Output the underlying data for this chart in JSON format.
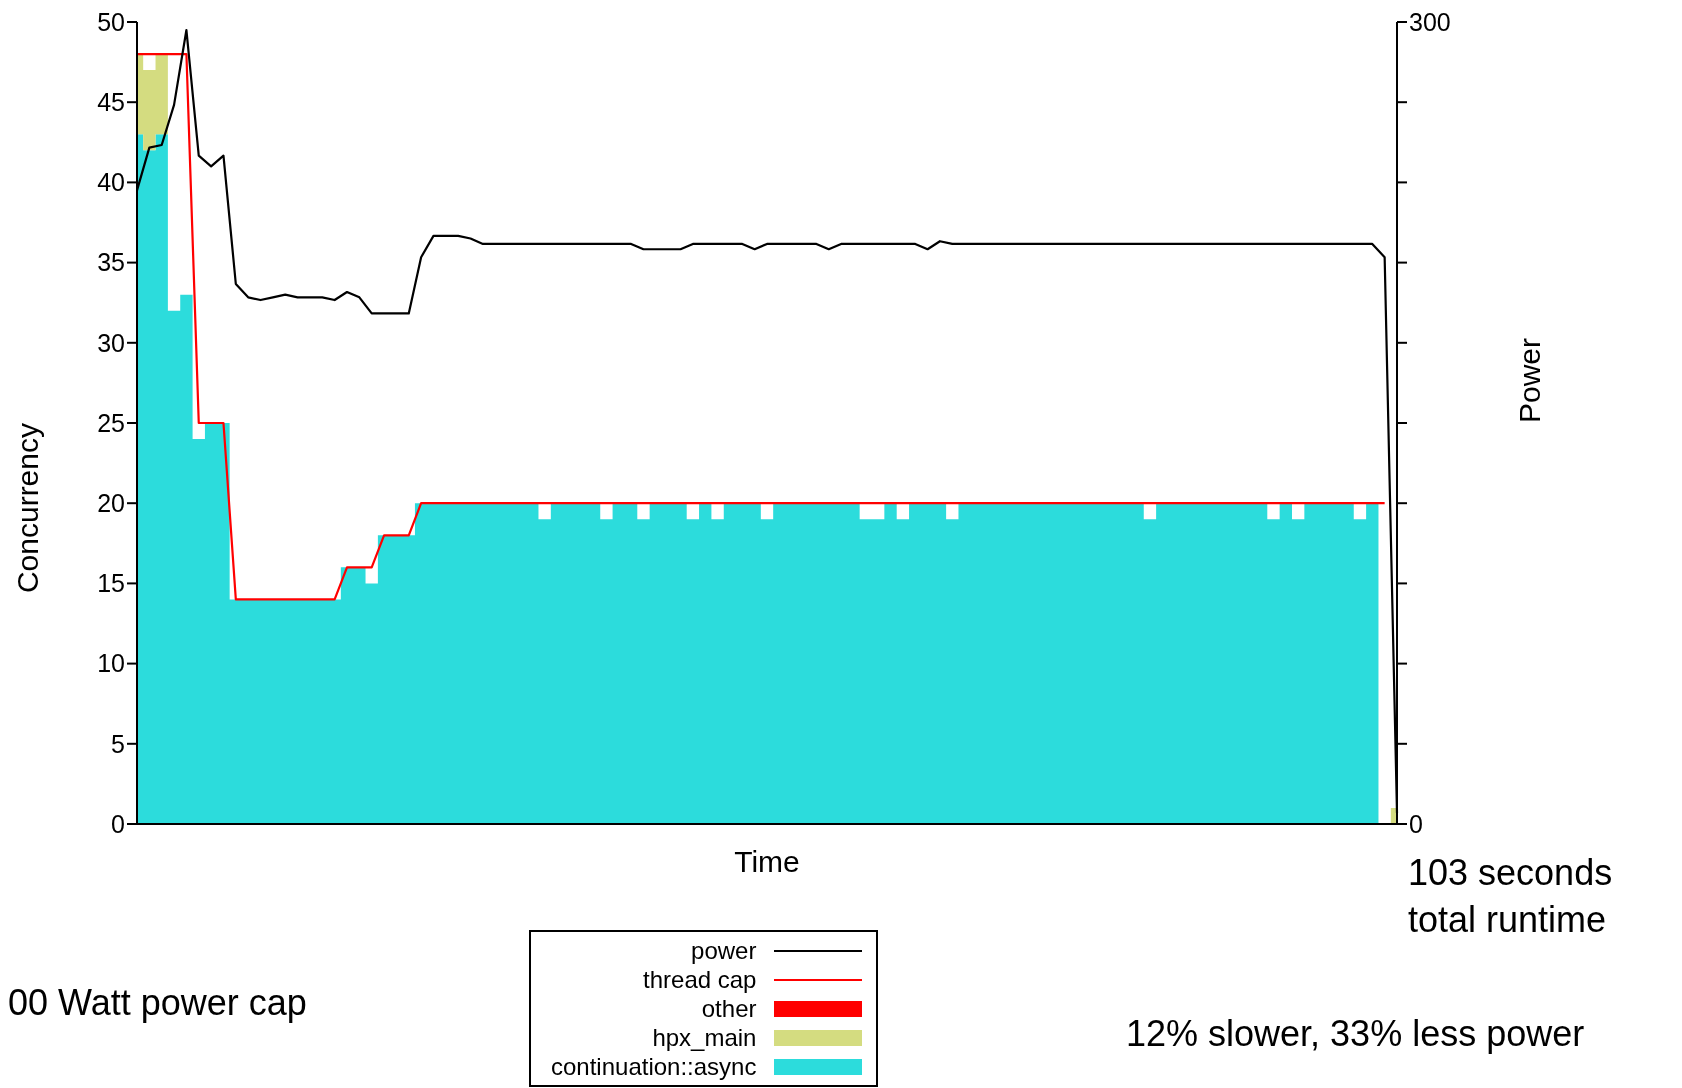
{
  "chart_data": {
    "type": "area",
    "xlabel": "Time",
    "ylabel": "Concurrency",
    "y2label": "Power",
    "categories": [
      null,
      null,
      null,
      null,
      null,
      null,
      null,
      null,
      null,
      null,
      null,
      null,
      null,
      null,
      null,
      null,
      null,
      null,
      null,
      null,
      null,
      null,
      null,
      null,
      null,
      null,
      null,
      null,
      null,
      null,
      null,
      null,
      null,
      null,
      null,
      null,
      null,
      null,
      null,
      null,
      null,
      null,
      null,
      null,
      null,
      null,
      null,
      null,
      null,
      null,
      null,
      null,
      null,
      null,
      null,
      null,
      null,
      null,
      null,
      null,
      null,
      null,
      null,
      null,
      null,
      null,
      null,
      null,
      null,
      null,
      null,
      null,
      null,
      null,
      null,
      null,
      null,
      null,
      null,
      null,
      null,
      null,
      null,
      null,
      null,
      null,
      null,
      null,
      null,
      null,
      null,
      null,
      null,
      null,
      null,
      null,
      null,
      null,
      null,
      null,
      null,
      null,
      null
    ],
    "stacked": true,
    "series": [
      {
        "name": "continuation::async",
        "color": "#2cdcdc",
        "values": [
          43,
          42,
          43,
          32,
          33,
          24,
          25,
          25,
          14,
          14,
          14,
          14,
          14,
          14,
          14,
          14,
          14,
          16,
          16,
          15,
          18,
          18,
          18,
          20,
          20,
          20,
          20,
          20,
          20,
          20,
          20,
          20,
          20,
          19,
          20,
          20,
          20,
          20,
          19,
          20,
          20,
          19,
          20,
          20,
          20,
          19,
          20,
          19,
          20,
          20,
          20,
          19,
          20,
          20,
          20,
          20,
          20,
          20,
          20,
          19,
          19,
          20,
          19,
          20,
          20,
          20,
          19,
          20,
          20,
          20,
          20,
          20,
          20,
          20,
          20,
          20,
          20,
          20,
          20,
          20,
          20,
          20,
          19,
          20,
          20,
          20,
          20,
          20,
          20,
          20,
          20,
          20,
          19,
          20,
          19,
          20,
          20,
          20,
          20,
          19,
          20,
          0,
          0
        ]
      },
      {
        "name": "hpx_main",
        "color": "#d4dc80",
        "values": [
          5,
          5,
          5,
          0,
          0,
          0,
          0,
          0,
          0,
          0,
          0,
          0,
          0,
          0,
          0,
          0,
          0,
          0,
          0,
          0,
          0,
          0,
          0,
          0,
          0,
          0,
          0,
          0,
          0,
          0,
          0,
          0,
          0,
          0,
          0,
          0,
          0,
          0,
          0,
          0,
          0,
          0,
          0,
          0,
          0,
          0,
          0,
          0,
          0,
          0,
          0,
          0,
          0,
          0,
          0,
          0,
          0,
          0,
          0,
          0,
          0,
          0,
          0,
          0,
          0,
          0,
          0,
          0,
          0,
          0,
          0,
          0,
          0,
          0,
          0,
          0,
          0,
          0,
          0,
          0,
          0,
          0,
          0,
          0,
          0,
          0,
          0,
          0,
          0,
          0,
          0,
          0,
          0,
          0,
          0,
          0,
          0,
          0,
          0,
          0,
          0,
          0,
          1
        ]
      },
      {
        "name": "other",
        "color": "#ff0000",
        "values": [
          null,
          null,
          null,
          null,
          null,
          null,
          null,
          null,
          null,
          null,
          null,
          null,
          null,
          null,
          null,
          null,
          null,
          null,
          null,
          null,
          null,
          null,
          null,
          null,
          null,
          null,
          null,
          null,
          null,
          null,
          null,
          null,
          null,
          null,
          null,
          null,
          null,
          null,
          null,
          null,
          null,
          null,
          null,
          null,
          null,
          null,
          null,
          null,
          null,
          null,
          null,
          null,
          null,
          null,
          null,
          null,
          null,
          null,
          null,
          null,
          null,
          null,
          null,
          null,
          null,
          null,
          null,
          null,
          null,
          null,
          null,
          null,
          null,
          null,
          null,
          null,
          null,
          null,
          null,
          null,
          null,
          null,
          null,
          null,
          null,
          null,
          null,
          null,
          null,
          null,
          null,
          null,
          null,
          null,
          null,
          null,
          null,
          null,
          null,
          null,
          null,
          null,
          null
        ]
      },
      {
        "name": "thread cap",
        "type": "line",
        "color": "#ff0000",
        "values": [
          48,
          48,
          48,
          48,
          48,
          25,
          25,
          25,
          14,
          14,
          14,
          14,
          14,
          14,
          14,
          14,
          14,
          16,
          16,
          16,
          18,
          18,
          18,
          20,
          20,
          20,
          20,
          20,
          20,
          20,
          20,
          20,
          20,
          20,
          20,
          20,
          20,
          20,
          20,
          20,
          20,
          20,
          20,
          20,
          20,
          20,
          20,
          20,
          20,
          20,
          20,
          20,
          20,
          20,
          20,
          20,
          20,
          20,
          20,
          20,
          20,
          20,
          20,
          20,
          20,
          20,
          20,
          20,
          20,
          20,
          20,
          20,
          20,
          20,
          20,
          20,
          20,
          20,
          20,
          20,
          20,
          20,
          20,
          20,
          20,
          20,
          20,
          20,
          20,
          20,
          20,
          20,
          20,
          20,
          20,
          20,
          20,
          20,
          20,
          20,
          20,
          20,
          null
        ]
      },
      {
        "name": "power",
        "type": "line",
        "axis": "y2",
        "color": "#000000",
        "values": [
          237,
          253,
          254,
          269,
          297,
          250,
          246,
          250,
          202,
          197,
          196,
          197,
          198,
          197,
          197,
          197,
          196,
          199,
          197,
          191,
          191,
          191,
          191,
          212,
          220,
          220,
          220,
          219,
          217,
          217,
          217,
          217,
          217,
          217,
          217,
          217,
          217,
          217,
          217,
          217,
          217,
          215,
          215,
          215,
          215,
          217,
          217,
          217,
          217,
          217,
          215,
          217,
          217,
          217,
          217,
          217,
          215,
          217,
          217,
          217,
          217,
          217,
          217,
          217,
          215,
          218,
          217,
          217,
          217,
          217,
          217,
          217,
          217,
          217,
          217,
          217,
          217,
          217,
          217,
          217,
          217,
          217,
          217,
          217,
          217,
          217,
          217,
          217,
          217,
          217,
          217,
          217,
          217,
          217,
          217,
          217,
          217,
          217,
          217,
          217,
          217,
          212,
          4
        ]
      }
    ],
    "ylim": [
      0,
      50
    ],
    "yticks": [
      0,
      5,
      10,
      15,
      20,
      25,
      30,
      35,
      40,
      45,
      50
    ],
    "y2lim": [
      0,
      300
    ],
    "y2ticks": [
      0,
      {
        "value": 30,
        "label": null
      },
      {
        "value": 60,
        "label": null
      },
      {
        "value": 90,
        "label": null
      },
      {
        "value": 120,
        "label": null
      },
      {
        "value": 150,
        "label": null
      },
      {
        "value": 180,
        "label": null
      },
      {
        "value": 210,
        "label": null
      },
      {
        "value": 240,
        "label": null
      },
      {
        "value": 270,
        "label": null
      },
      300
    ],
    "legend": "bottom",
    "annotations": [
      "103 seconds\ntotal runtime",
      "00 Watt power cap",
      "12% slower, 33% less power"
    ]
  }
}
